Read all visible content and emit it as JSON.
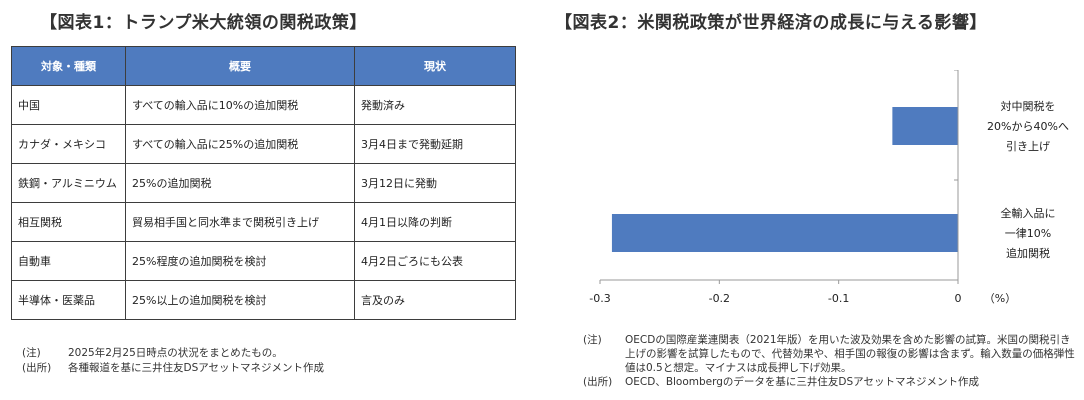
{
  "panel1": {
    "title": "【図表1：トランプ米大統領の関税政策】",
    "headers": [
      "対象・種類",
      "概要",
      "現状"
    ],
    "rows": [
      [
        "中国",
        "すべての輸入品に10%の追加関税",
        "発動済み"
      ],
      [
        "カナダ・メキシコ",
        "すべての輸入品に25%の追加関税",
        "3月4日まで発動延期"
      ],
      [
        "鉄鋼・アルミニウム",
        "25%の追加関税",
        "3月12日に発動"
      ],
      [
        "相互関税",
        "貿易相手国と同水準まで関税引き上げ",
        "4月1日以降の判断"
      ],
      [
        "自動車",
        "25%程度の追加関税を検討",
        "4月2日ごろにも公表"
      ],
      [
        "半導体・医薬品",
        "25%以上の追加関税を検討",
        "言及のみ"
      ]
    ],
    "notes": [
      {
        "label": "(注)",
        "text": "2025年2月25日時点の状況をまとめたもの。"
      },
      {
        "label": "(出所)",
        "text": "各種報道を基に三井住友DSアセットマネジメント作成"
      }
    ]
  },
  "panel2": {
    "title": "【図表2：米関税政策が世界経済の成長に与える影響】",
    "notes": [
      {
        "label": "(注)",
        "text": "OECDの国際産業連関表（2021年版）を用いた波及効果を含めた影響の試算。米国の関税引き上げの影響を試算したもので、代替効果や、相手国の報復の影響は含まず。輸入数量の価格弾性値は0.5と想定。マイナスは成長押し下げ効果。"
      },
      {
        "label": "(出所)",
        "text": "OECD、Bloombergのデータを基に三井住友DSアセットマネジメント作成"
      }
    ]
  },
  "chart_data": {
    "type": "bar",
    "orientation": "horizontal",
    "categories": [
      [
        "対中関税を",
        "20%から40%へ",
        "引き上げ"
      ],
      [
        "全輸入品に",
        "一律10%",
        "追加関税"
      ]
    ],
    "values": [
      -0.055,
      -0.29
    ],
    "xlim": [
      -0.3,
      0
    ],
    "xticks": [
      "-0.3",
      "-0.2",
      "-0.1",
      "0"
    ],
    "xtick_values": [
      -0.3,
      -0.2,
      -0.1,
      0
    ],
    "unit": "（%）",
    "colors": {
      "bar": "#4f7bbf",
      "axis": "#999999"
    }
  }
}
